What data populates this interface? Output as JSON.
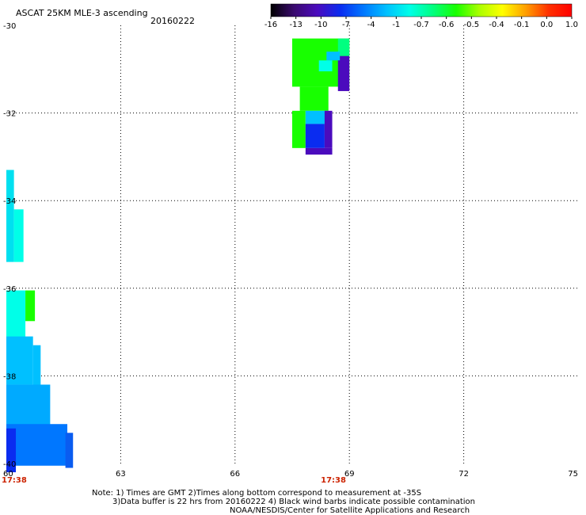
{
  "chart_data": {
    "type": "heatmap",
    "title": "ASCAT 25KM MLE-3 ascending",
    "date": "20160222",
    "x_ticks": [
      "60",
      "63",
      "66",
      "69",
      "72",
      "75"
    ],
    "y_ticks": [
      "-30",
      "-32",
      "-34",
      "-36",
      "-38",
      "-40"
    ],
    "xlim": [
      60,
      75
    ],
    "ylim": [
      -40,
      -30
    ],
    "grid": true,
    "time_labels": [
      {
        "lon": 60,
        "text": "17:38"
      },
      {
        "lon": 68.5,
        "text": "17:38"
      }
    ],
    "colorbar": {
      "labels": [
        "-16",
        "-13",
        "-10",
        "-7",
        "-4",
        "-1",
        "-0.7",
        "-0.6",
        "-0.5",
        "-0.4",
        "-0.1",
        "0.0",
        "1.0"
      ],
      "colors": [
        "#000000",
        "#3a0a6e",
        "#4b0bbd",
        "#0a2cf0",
        "#0077ff",
        "#00c0ff",
        "#00ffe8",
        "#00ff80",
        "#18ff00",
        "#aaff00",
        "#ffff00",
        "#ffa000",
        "#ff3000",
        "#ff0000"
      ]
    },
    "cells": [
      {
        "lon": 67.5,
        "lat": -30.3,
        "dlon": 1.5,
        "dlat": 1.1,
        "color": "#18ff00"
      },
      {
        "lon": 68.7,
        "lat": -30.3,
        "dlon": 0.3,
        "dlat": 0.4,
        "color": "#00ff80"
      },
      {
        "lon": 68.7,
        "lat": -30.7,
        "dlon": 0.3,
        "dlat": 0.8,
        "color": "#4b0bbd"
      },
      {
        "lon": 68.4,
        "lat": -30.6,
        "dlon": 0.35,
        "dlat": 0.2,
        "color": "#00c0ff"
      },
      {
        "lon": 68.2,
        "lat": -30.8,
        "dlon": 0.35,
        "dlat": 0.25,
        "color": "#00ffe8"
      },
      {
        "lon": 67.7,
        "lat": -31.4,
        "dlon": 0.75,
        "dlat": 0.55,
        "color": "#18ff00"
      },
      {
        "lon": 67.5,
        "lat": -31.95,
        "dlon": 0.35,
        "dlat": 0.85,
        "color": "#18ff00"
      },
      {
        "lon": 67.85,
        "lat": -31.95,
        "dlon": 0.6,
        "dlat": 0.3,
        "color": "#00c0ff"
      },
      {
        "lon": 67.85,
        "lat": -32.25,
        "dlon": 0.5,
        "dlat": 0.55,
        "color": "#0a2cf0"
      },
      {
        "lon": 68.35,
        "lat": -31.95,
        "dlon": 0.2,
        "dlat": 0.85,
        "color": "#4b0bbd"
      },
      {
        "lon": 67.85,
        "lat": -32.8,
        "dlon": 0.7,
        "dlat": 0.15,
        "color": "#4b0bbd"
      },
      {
        "lon": 60.0,
        "lat": -33.3,
        "dlon": 0.2,
        "dlat": 2.1,
        "color": "#00e0f0"
      },
      {
        "lon": 60.2,
        "lat": -34.2,
        "dlon": 0.25,
        "dlat": 1.2,
        "color": "#00ffe8"
      },
      {
        "lon": 60.0,
        "lat": -36.05,
        "dlon": 0.5,
        "dlat": 1.1,
        "color": "#00ffe8"
      },
      {
        "lon": 60.5,
        "lat": -36.05,
        "dlon": 0.25,
        "dlat": 0.7,
        "color": "#18ff00"
      },
      {
        "lon": 60.0,
        "lat": -37.1,
        "dlon": 0.7,
        "dlat": 1.1,
        "color": "#00c0ff"
      },
      {
        "lon": 60.7,
        "lat": -37.3,
        "dlon": 0.2,
        "dlat": 1.0,
        "color": "#00c0ff"
      },
      {
        "lon": 60.0,
        "lat": -38.2,
        "dlon": 1.15,
        "dlat": 1.0,
        "color": "#00aaff"
      },
      {
        "lon": 60.0,
        "lat": -39.1,
        "dlon": 1.6,
        "dlat": 0.95,
        "color": "#0077ff"
      },
      {
        "lon": 60.0,
        "lat": -39.2,
        "dlon": 0.25,
        "dlat": 1.0,
        "color": "#0a2cf0"
      },
      {
        "lon": 61.55,
        "lat": -39.3,
        "dlon": 0.2,
        "dlat": 0.8,
        "color": "#0a5cf0"
      }
    ]
  },
  "notes": [
    "Note: 1) Times are GMT 2)Times along bottom correspond to measurement at -35S",
    "3)Data buffer is 22 hrs from 20160222 4) Black wind barbs indicate possible contamination",
    "NOAA/NESDIS/Center for Satellite Applications and Research"
  ]
}
